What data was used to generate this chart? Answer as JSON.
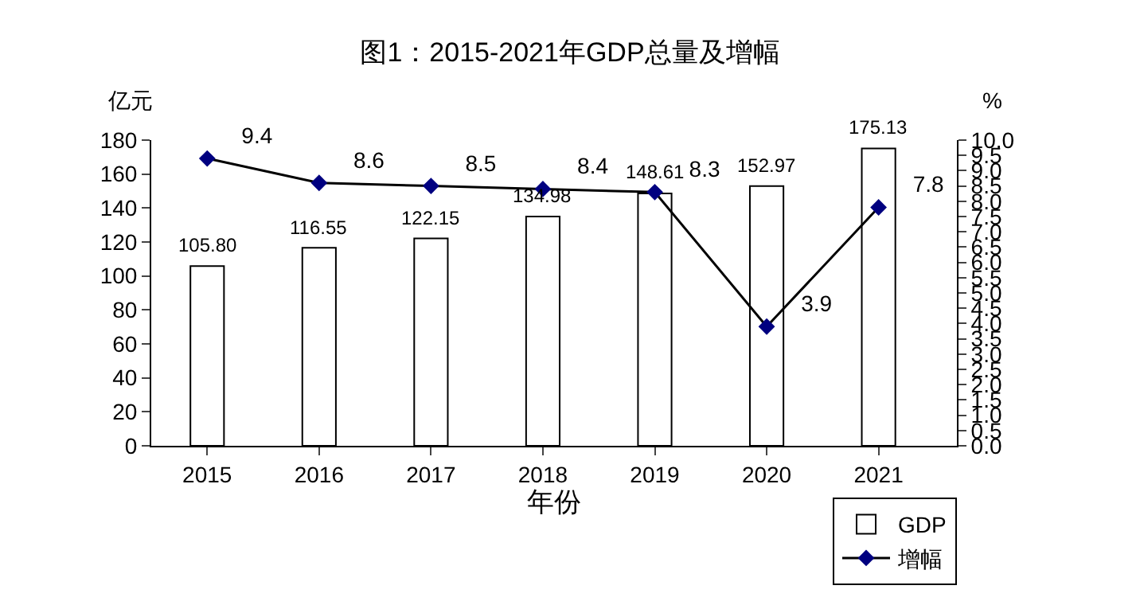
{
  "chart_data": {
    "type": "bar",
    "title": "图1：2015-2021年GDP总量及增幅",
    "xlabel": "年份",
    "ylabel": "亿元",
    "y2label": "%",
    "categories": [
      "2015",
      "2016",
      "2017",
      "2018",
      "2019",
      "2020",
      "2021"
    ],
    "series": [
      {
        "name": "GDP",
        "color": "#ffffff",
        "values": [
          105.8,
          116.55,
          122.15,
          134.98,
          148.61,
          152.97,
          175.13
        ],
        "value_labels": [
          "105.80",
          "116.55",
          "122.15",
          "134.98",
          "148.61",
          "152.97",
          "175.13"
        ]
      },
      {
        "name": "增幅",
        "type": "line",
        "axis": "y2",
        "color": "#000080",
        "marker": "diamond",
        "values": [
          9.4,
          8.6,
          8.5,
          8.4,
          8.3,
          3.9,
          7.8
        ],
        "value_labels": [
          "9.4",
          "8.6",
          "8.5",
          "8.4",
          "8.3",
          "3.9",
          "7.8"
        ]
      }
    ],
    "ylim": [
      0,
      180
    ],
    "yticks": [
      0,
      20,
      40,
      60,
      80,
      100,
      120,
      140,
      160,
      180
    ],
    "y2lim": [
      0,
      10
    ],
    "y2ticks": [
      {
        "value": 0,
        "label": "0.0"
      },
      {
        "value": 0.5,
        "label": "0.5"
      },
      {
        "value": 1,
        "label": "1.0"
      },
      {
        "value": 1.5,
        "label": "1.5"
      },
      {
        "value": 2,
        "label": "2.0"
      },
      {
        "value": 2.5,
        "label": "2.5"
      },
      {
        "value": 3,
        "label": "3.0"
      },
      {
        "value": 3.5,
        "label": "3.5"
      },
      {
        "value": 4,
        "label": "4.0"
      },
      {
        "value": 4.5,
        "label": "4.5"
      },
      {
        "value": 5,
        "label": "5.0"
      },
      {
        "value": 5.5,
        "label": "5.5"
      },
      {
        "value": 6,
        "label": "6.0"
      },
      {
        "value": 6.5,
        "label": "6.5"
      },
      {
        "value": 7,
        "label": "7.0"
      },
      {
        "value": 7.5,
        "label": "7.5"
      },
      {
        "value": 8,
        "label": "8.0"
      },
      {
        "value": 8.5,
        "label": "8.5"
      },
      {
        "value": 9,
        "label": "9.0"
      },
      {
        "value": 9.5,
        "label": "9.5"
      },
      {
        "value": 10,
        "label": "10.0"
      }
    ],
    "legend": "bottom right"
  }
}
